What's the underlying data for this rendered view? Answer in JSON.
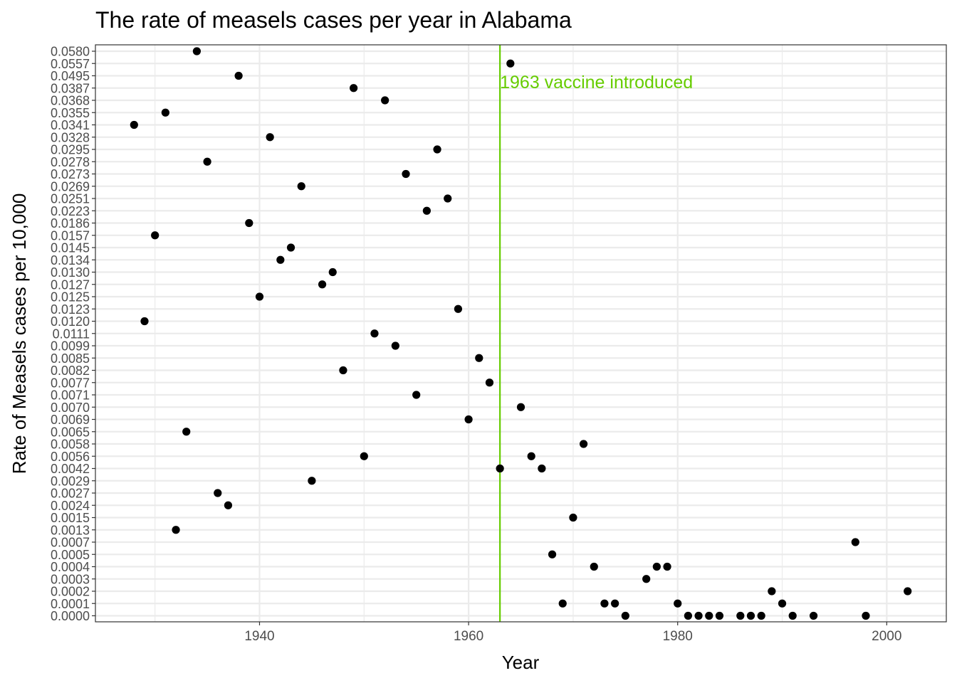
{
  "chart_data": {
    "type": "scatter",
    "title": "The rate of measels cases per year in Alabama",
    "xlabel": "Year",
    "ylabel": "Rate of Measels cases per 10,000",
    "xlim": [
      1924.3,
      2005.7
    ],
    "x_ticks": [
      1940,
      1960,
      1980,
      2000
    ],
    "y_axis_scale": "categorical (each distinct rate value is its own evenly spaced level)",
    "y_levels": [
      "0.0000",
      "0.0001",
      "0.0002",
      "0.0003",
      "0.0004",
      "0.0005",
      "0.0007",
      "0.0013",
      "0.0015",
      "0.0024",
      "0.0027",
      "0.0029",
      "0.0042",
      "0.0056",
      "0.0058",
      "0.0065",
      "0.0069",
      "0.0070",
      "0.0071",
      "0.0077",
      "0.0082",
      "0.0085",
      "0.0099",
      "0.0111",
      "0.0120",
      "0.0123",
      "0.0125",
      "0.0127",
      "0.0130",
      "0.0134",
      "0.0145",
      "0.0157",
      "0.0186",
      "0.0223",
      "0.0251",
      "0.0269",
      "0.0273",
      "0.0278",
      "0.0295",
      "0.0328",
      "0.0341",
      "0.0355",
      "0.0368",
      "0.0387",
      "0.0495",
      "0.0557",
      "0.0580"
    ],
    "grid": true,
    "legend": "none",
    "point_color": "#000000",
    "annotation": {
      "x": 1963,
      "text": "1963 vaccine introduced",
      "color": "#66cc00"
    },
    "points": [
      {
        "x": 1928,
        "y": "0.0341"
      },
      {
        "x": 1929,
        "y": "0.0120"
      },
      {
        "x": 1930,
        "y": "0.0157"
      },
      {
        "x": 1931,
        "y": "0.0355"
      },
      {
        "x": 1932,
        "y": "0.0013"
      },
      {
        "x": 1933,
        "y": "0.0065"
      },
      {
        "x": 1934,
        "y": "0.0580"
      },
      {
        "x": 1935,
        "y": "0.0278"
      },
      {
        "x": 1936,
        "y": "0.0027"
      },
      {
        "x": 1937,
        "y": "0.0024"
      },
      {
        "x": 1938,
        "y": "0.0495"
      },
      {
        "x": 1939,
        "y": "0.0186"
      },
      {
        "x": 1940,
        "y": "0.0125"
      },
      {
        "x": 1941,
        "y": "0.0328"
      },
      {
        "x": 1942,
        "y": "0.0134"
      },
      {
        "x": 1943,
        "y": "0.0145"
      },
      {
        "x": 1944,
        "y": "0.0269"
      },
      {
        "x": 1945,
        "y": "0.0029"
      },
      {
        "x": 1946,
        "y": "0.0127"
      },
      {
        "x": 1947,
        "y": "0.0130"
      },
      {
        "x": 1948,
        "y": "0.0082"
      },
      {
        "x": 1949,
        "y": "0.0387"
      },
      {
        "x": 1950,
        "y": "0.0056"
      },
      {
        "x": 1951,
        "y": "0.0111"
      },
      {
        "x": 1952,
        "y": "0.0368"
      },
      {
        "x": 1953,
        "y": "0.0099"
      },
      {
        "x": 1954,
        "y": "0.0273"
      },
      {
        "x": 1955,
        "y": "0.0071"
      },
      {
        "x": 1956,
        "y": "0.0223"
      },
      {
        "x": 1957,
        "y": "0.0295"
      },
      {
        "x": 1958,
        "y": "0.0251"
      },
      {
        "x": 1959,
        "y": "0.0123"
      },
      {
        "x": 1960,
        "y": "0.0069"
      },
      {
        "x": 1961,
        "y": "0.0085"
      },
      {
        "x": 1962,
        "y": "0.0077"
      },
      {
        "x": 1963,
        "y": "0.0042"
      },
      {
        "x": 1964,
        "y": "0.0557"
      },
      {
        "x": 1965,
        "y": "0.0070"
      },
      {
        "x": 1966,
        "y": "0.0056"
      },
      {
        "x": 1967,
        "y": "0.0042"
      },
      {
        "x": 1968,
        "y": "0.0005"
      },
      {
        "x": 1969,
        "y": "0.0001"
      },
      {
        "x": 1970,
        "y": "0.0015"
      },
      {
        "x": 1971,
        "y": "0.0058"
      },
      {
        "x": 1972,
        "y": "0.0004"
      },
      {
        "x": 1973,
        "y": "0.0001"
      },
      {
        "x": 1974,
        "y": "0.0001"
      },
      {
        "x": 1975,
        "y": "0.0000"
      },
      {
        "x": 1977,
        "y": "0.0003"
      },
      {
        "x": 1978,
        "y": "0.0004"
      },
      {
        "x": 1979,
        "y": "0.0004"
      },
      {
        "x": 1980,
        "y": "0.0001"
      },
      {
        "x": 1981,
        "y": "0.0000"
      },
      {
        "x": 1982,
        "y": "0.0000"
      },
      {
        "x": 1983,
        "y": "0.0000"
      },
      {
        "x": 1984,
        "y": "0.0000"
      },
      {
        "x": 1986,
        "y": "0.0000"
      },
      {
        "x": 1987,
        "y": "0.0000"
      },
      {
        "x": 1988,
        "y": "0.0000"
      },
      {
        "x": 1989,
        "y": "0.0002"
      },
      {
        "x": 1990,
        "y": "0.0001"
      },
      {
        "x": 1991,
        "y": "0.0000"
      },
      {
        "x": 1993,
        "y": "0.0000"
      },
      {
        "x": 1997,
        "y": "0.0007"
      },
      {
        "x": 1998,
        "y": "0.0000"
      },
      {
        "x": 2002,
        "y": "0.0002"
      }
    ]
  }
}
